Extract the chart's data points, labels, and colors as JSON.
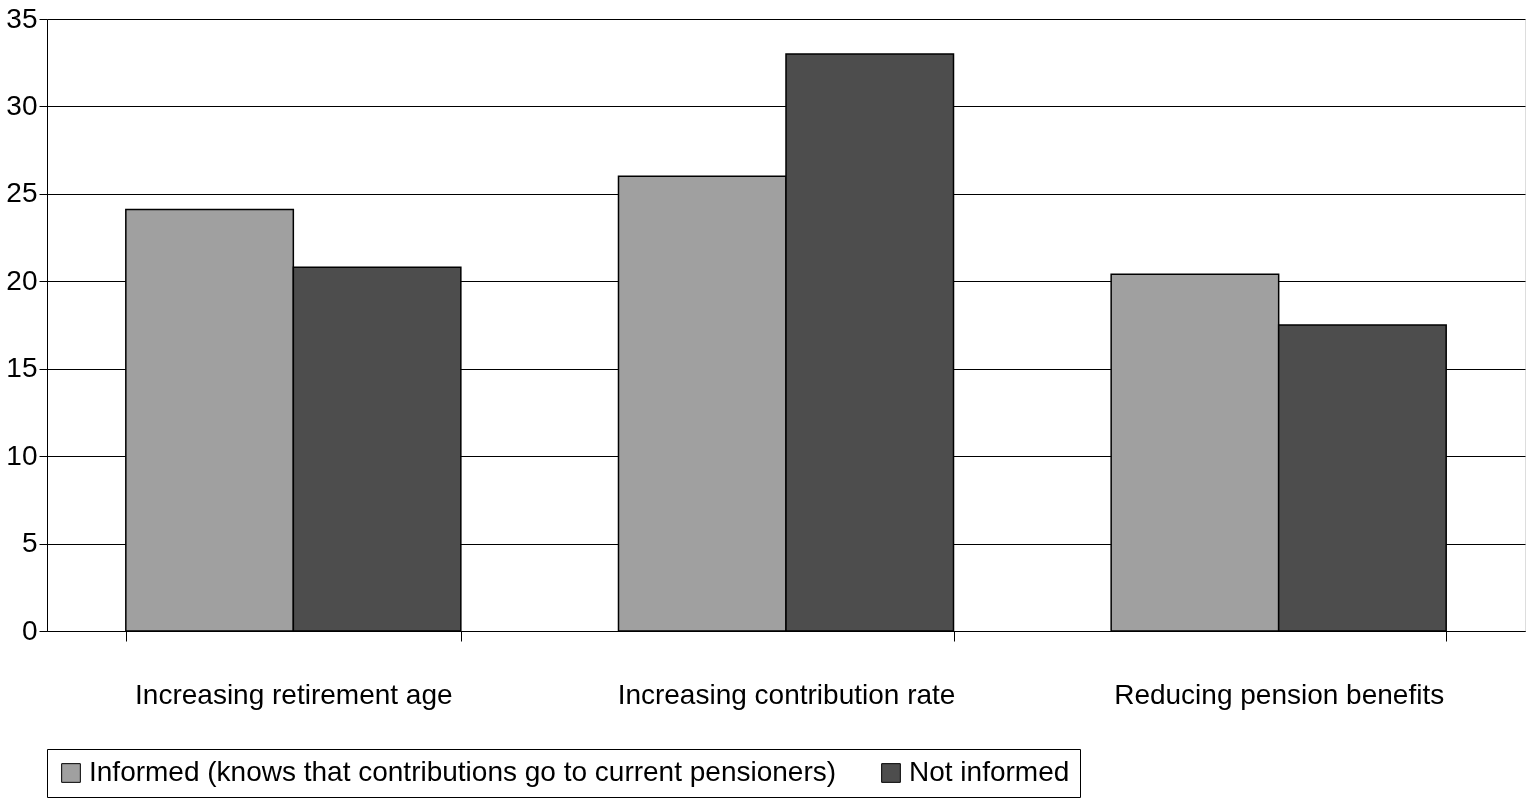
{
  "chart_data": {
    "type": "bar",
    "categories": [
      "Increasing retirement age",
      "Increasing contribution rate",
      "Reducing pension benefits"
    ],
    "series": [
      {
        "name": "Informed (knows that contributions go to current pensioners)",
        "color": "#a0a0a0",
        "values": [
          24.1,
          26,
          20.4
        ]
      },
      {
        "name": "Not informed",
        "color": "#4d4d4d",
        "values": [
          20.8,
          33,
          17.5
        ]
      }
    ],
    "ylim": [
      0,
      35
    ],
    "yticks": [
      0,
      5,
      10,
      15,
      20,
      25,
      30,
      35
    ],
    "grid": "y",
    "legend": "bottom"
  }
}
